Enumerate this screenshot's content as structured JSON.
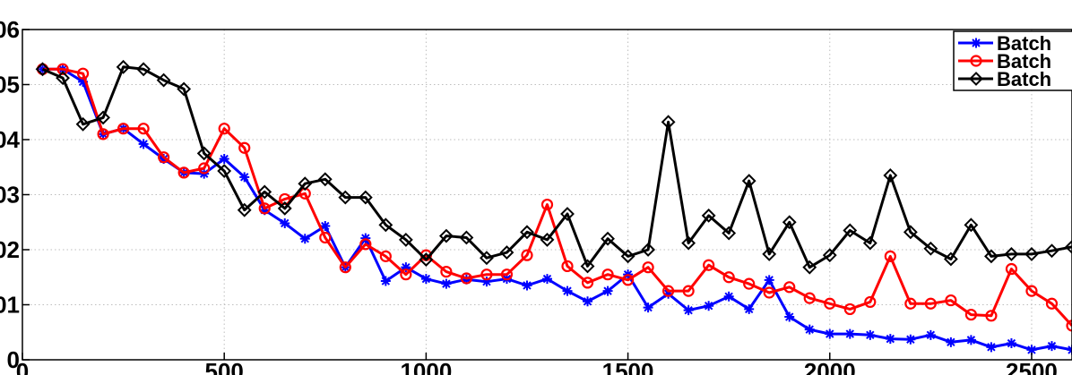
{
  "chart_data": {
    "type": "line",
    "title": "",
    "xlabel": "",
    "ylabel": "",
    "xlim": [
      0,
      2600
    ],
    "ylim": [
      0,
      0.06
    ],
    "grid": true,
    "x_ticks": [
      0,
      500,
      1000,
      1500,
      2000,
      2500
    ],
    "x_tick_labels": [
      "0",
      "500",
      "1000",
      "1500",
      "2000",
      "2500"
    ],
    "y_ticks": [
      0,
      0.01,
      0.02,
      0.03,
      0.04,
      0.05,
      0.06
    ],
    "y_tick_labels": [
      "0",
      "01",
      "02",
      "03",
      "04",
      "05",
      "06"
    ],
    "legend_position": "top-right",
    "x": [
      50,
      100,
      150,
      200,
      250,
      300,
      350,
      400,
      450,
      500,
      550,
      600,
      650,
      700,
      750,
      800,
      850,
      900,
      950,
      1000,
      1050,
      1100,
      1150,
      1200,
      1250,
      1300,
      1350,
      1400,
      1450,
      1500,
      1550,
      1600,
      1650,
      1700,
      1750,
      1800,
      1850,
      1900,
      1950,
      2000,
      2050,
      2100,
      2150,
      2200,
      2250,
      2300,
      2350,
      2400,
      2450,
      2500,
      2550,
      2600
    ],
    "series": [
      {
        "name": "Batch",
        "color": "#0000ff",
        "marker": "asterisk",
        "values": [
          0.0528,
          0.0528,
          0.0505,
          0.041,
          0.042,
          0.0392,
          0.0365,
          0.034,
          0.0338,
          0.0365,
          0.0332,
          0.0272,
          0.0248,
          0.022,
          0.0243,
          0.0168,
          0.0221,
          0.0143,
          0.0168,
          0.0147,
          0.0138,
          0.0146,
          0.0142,
          0.0147,
          0.0135,
          0.0147,
          0.0125,
          0.0106,
          0.0125,
          0.0155,
          0.0095,
          0.012,
          0.009,
          0.0098,
          0.0115,
          0.0092,
          0.0145,
          0.0078,
          0.0055,
          0.0047,
          0.0047,
          0.0045,
          0.0038,
          0.0037,
          0.0045,
          0.0032,
          0.0036,
          0.0023,
          0.003,
          0.0018,
          0.0025,
          0.0018
        ]
      },
      {
        "name": "Batch",
        "color": "#ff0000",
        "marker": "circle",
        "values": [
          0.0528,
          0.0528,
          0.052,
          0.041,
          0.042,
          0.042,
          0.0368,
          0.034,
          0.0348,
          0.042,
          0.0385,
          0.0275,
          0.0292,
          0.0302,
          0.0222,
          0.0168,
          0.021,
          0.0188,
          0.0155,
          0.019,
          0.016,
          0.0148,
          0.0155,
          0.0155,
          0.019,
          0.0282,
          0.017,
          0.014,
          0.0155,
          0.0145,
          0.0168,
          0.0125,
          0.0125,
          0.0172,
          0.015,
          0.0138,
          0.0122,
          0.0132,
          0.0112,
          0.0102,
          0.0092,
          0.0105,
          0.0188,
          0.0102,
          0.0102,
          0.0108,
          0.0082,
          0.008,
          0.0165,
          0.0125,
          0.0102,
          0.0062
        ]
      },
      {
        "name": "Batch",
        "color": "#000000",
        "marker": "diamond",
        "values": [
          0.0528,
          0.0512,
          0.0428,
          0.044,
          0.0532,
          0.0528,
          0.0508,
          0.0492,
          0.0375,
          0.0343,
          0.0272,
          0.0305,
          0.0275,
          0.032,
          0.0328,
          0.0295,
          0.0295,
          0.0245,
          0.0218,
          0.0182,
          0.0225,
          0.0222,
          0.0185,
          0.0195,
          0.0232,
          0.0218,
          0.0265,
          0.017,
          0.022,
          0.0188,
          0.02,
          0.0432,
          0.0212,
          0.0262,
          0.023,
          0.0325,
          0.0192,
          0.025,
          0.0168,
          0.019,
          0.0235,
          0.0212,
          0.0335,
          0.0232,
          0.0202,
          0.0183,
          0.0245,
          0.0188,
          0.0192,
          0.0192,
          0.0198,
          0.0205
        ]
      }
    ]
  }
}
